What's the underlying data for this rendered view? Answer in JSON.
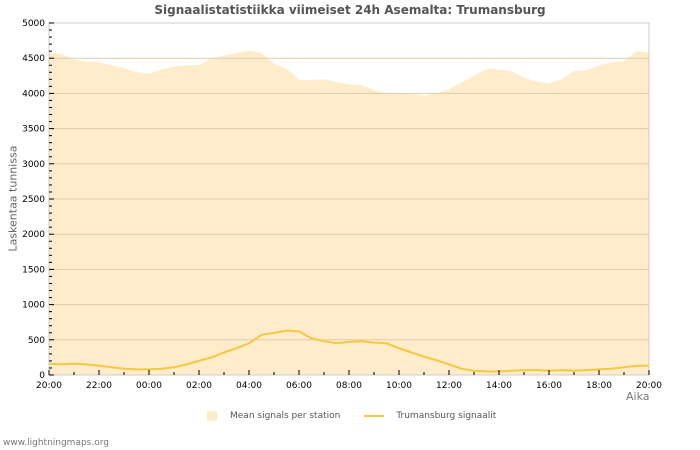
{
  "title": "Signaalistatistiikka viimeiset 24h Asemalta: Trumansburg",
  "credit": "www.lightningmaps.org",
  "colors": {
    "area": "#feeccb",
    "line": "#f5c842",
    "grid": "#cccccc",
    "grid_in_area": "#d8c8a8",
    "axis": "#cccccc"
  },
  "chart_data": {
    "type": "area",
    "title": "Signaalistatistiikka viimeiset 24h Asemalta: Trumansburg",
    "xlabel": "Aika",
    "ylabel": "Laskentaa tunnissa",
    "ylim": [
      0,
      5000
    ],
    "yticks": [
      "0",
      "500",
      "1000",
      "1500",
      "2000",
      "2500",
      "3000",
      "3500",
      "4000",
      "4500",
      "5000"
    ],
    "xticks": [
      "20:00",
      "22:00",
      "00:00",
      "02:00",
      "04:00",
      "06:00",
      "08:00",
      "10:00",
      "12:00",
      "14:00",
      "16:00",
      "18:00",
      "20:00"
    ],
    "grid": true,
    "legend_position": "bottom",
    "x_interval": "30min",
    "x": [
      "20:00",
      "20:30",
      "21:00",
      "21:30",
      "22:00",
      "22:30",
      "23:00",
      "23:30",
      "00:00",
      "00:30",
      "01:00",
      "01:30",
      "02:00",
      "02:30",
      "03:00",
      "03:30",
      "04:00",
      "04:30",
      "05:00",
      "05:30",
      "06:00",
      "06:30",
      "07:00",
      "07:30",
      "08:00",
      "08:30",
      "09:00",
      "09:30",
      "10:00",
      "10:30",
      "11:00",
      "11:30",
      "12:00",
      "12:30",
      "13:00",
      "13:30",
      "14:00",
      "14:30",
      "15:00",
      "15:30",
      "16:00",
      "16:30",
      "17:00",
      "17:30",
      "18:00",
      "18:30",
      "19:00",
      "19:30",
      "20:00"
    ],
    "series": [
      {
        "name": "Mean signals per station",
        "kind": "area",
        "values": [
          4580,
          4560,
          4480,
          4450,
          4440,
          4400,
          4360,
          4300,
          4280,
          4340,
          4380,
          4400,
          4400,
          4500,
          4540,
          4570,
          4610,
          4580,
          4420,
          4350,
          4190,
          4190,
          4200,
          4160,
          4130,
          4120,
          4050,
          4000,
          4000,
          3990,
          3970,
          4000,
          4060,
          4150,
          4250,
          4350,
          4340,
          4320,
          4220,
          4170,
          4140,
          4200,
          4320,
          4330,
          4400,
          4440,
          4460,
          4600,
          4580
        ]
      },
      {
        "name": "Trumansburg signaalit",
        "kind": "line",
        "values": [
          160,
          150,
          160,
          150,
          130,
          110,
          90,
          80,
          80,
          90,
          110,
          150,
          200,
          250,
          320,
          380,
          450,
          570,
          600,
          630,
          620,
          520,
          480,
          450,
          470,
          480,
          460,
          450,
          380,
          320,
          260,
          210,
          150,
          90,
          60,
          50,
          50,
          60,
          70,
          70,
          60,
          70,
          60,
          70,
          80,
          90,
          110,
          130,
          130
        ]
      }
    ]
  },
  "legend": {
    "area_label": "Mean signals per station",
    "line_label": "Trumansburg signaalit"
  },
  "axes": {
    "y_title": "Laskentaa tunnissa",
    "x_title": "Aika"
  }
}
